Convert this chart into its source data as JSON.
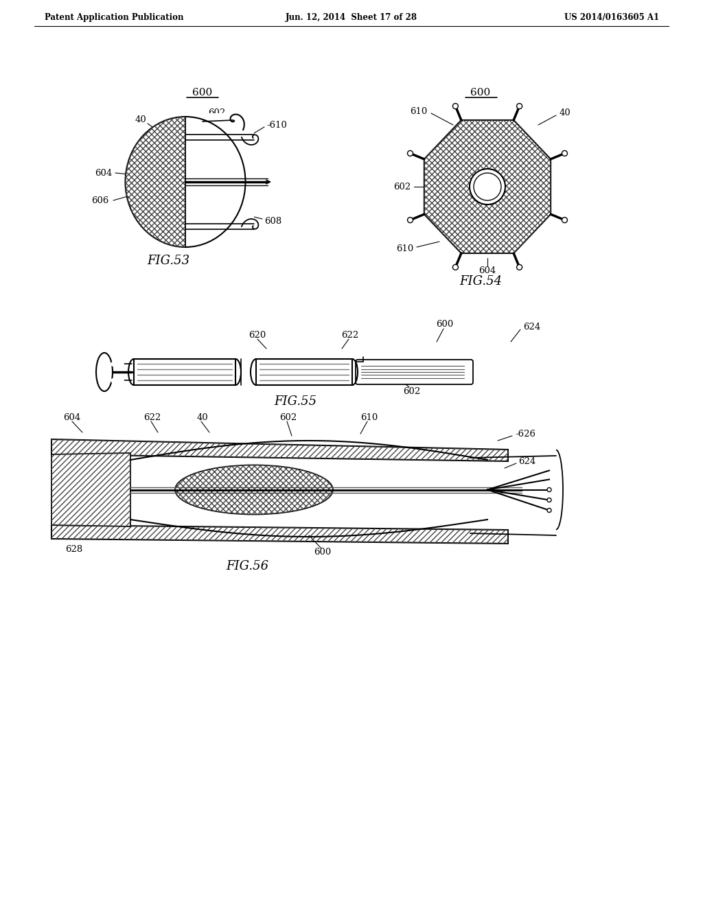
{
  "bg_color": "#ffffff",
  "header_left": "Patent Application Publication",
  "header_mid": "Jun. 12, 2014  Sheet 17 of 28",
  "header_right": "US 2014/0163605 A1",
  "fig53_label": "FIG.53",
  "fig54_label": "FIG.54",
  "fig55_label": "FIG.55",
  "fig56_label": "FIG.56",
  "text_color": "#000000",
  "line_color": "#000000"
}
